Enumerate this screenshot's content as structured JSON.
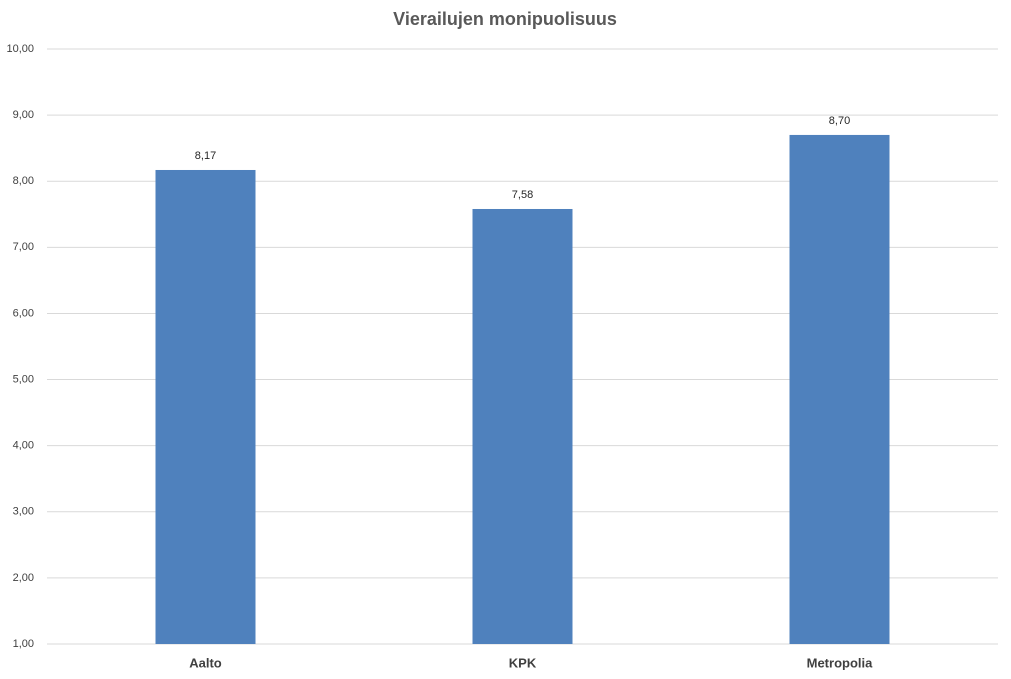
{
  "chart_data": {
    "type": "bar",
    "title": "Vierailujen monipuolisuus",
    "categories": [
      "Aalto",
      "KPK",
      "Metropolia"
    ],
    "values": [
      8.17,
      7.58,
      8.7
    ],
    "value_labels": [
      "8,17",
      "7,58",
      "8,70"
    ],
    "color": "#4f81bd",
    "ylim": [
      1,
      10
    ],
    "yticks": [
      {
        "value": 1,
        "label": "1,00"
      },
      {
        "value": 2,
        "label": "2,00"
      },
      {
        "value": 3,
        "label": "3,00"
      },
      {
        "value": 4,
        "label": "4,00"
      },
      {
        "value": 5,
        "label": "5,00"
      },
      {
        "value": 6,
        "label": "6,00"
      },
      {
        "value": 7,
        "label": "7,00"
      },
      {
        "value": 8,
        "label": "8,00"
      },
      {
        "value": 9,
        "label": "9,00"
      },
      {
        "value": 10,
        "label": "10,00"
      }
    ],
    "grid": true
  }
}
